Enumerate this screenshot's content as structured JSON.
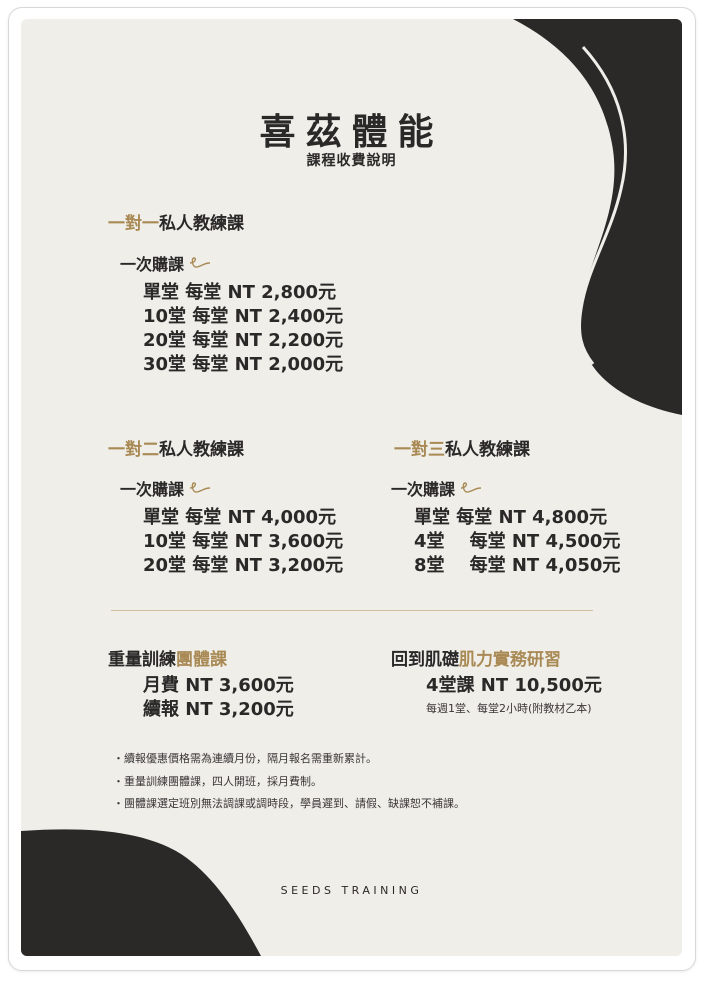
{
  "header": {
    "title": "喜茲體能",
    "subtitle": "課程收費說明"
  },
  "one_on_one": {
    "title_accent": "一對一",
    "title_rest": "私人教練課",
    "buy_label": "一次購課",
    "prices": [
      "單堂  每堂 NT 2,800元",
      "10堂  每堂 NT 2,400元",
      "20堂  每堂 NT 2,200元",
      "30堂  每堂 NT 2,000元"
    ]
  },
  "one_on_two": {
    "title_accent": "一對二",
    "title_rest": "私人教練課",
    "buy_label": "一次購課",
    "prices": [
      "單堂  每堂 NT 4,000元",
      "10堂  每堂 NT 3,600元",
      "20堂  每堂 NT 3,200元"
    ]
  },
  "one_on_three": {
    "title_accent": "一對三",
    "title_rest": "私人教練課",
    "buy_label": "一次購課",
    "prices": [
      "單堂  每堂 NT 4,800元",
      "4堂    每堂 NT 4,500元",
      "8堂    每堂 NT 4,050元"
    ]
  },
  "group_class": {
    "title_plain": "重量訓練",
    "title_accent": "團體課",
    "prices": [
      "月費 NT 3,600元",
      "續報 NT 3,200元"
    ]
  },
  "workshop": {
    "title_plain": "回到肌礎",
    "title_accent": "肌力實務研習",
    "price": "4堂課 NT 10,500元",
    "note": "每週1堂、每堂2小時(附教材乙本)"
  },
  "notes": [
    "・續報優惠價格需為連續月份，隔月報名需重新累計。",
    "・重量訓練團體課，四人開班，採月費制。",
    "・團體課選定班別無法調課或調時段，學員遲到、請假、缺課恕不補課。"
  ],
  "footer": {
    "brand": "SEEDS TRAINING"
  },
  "colors": {
    "background": "#efeee9",
    "dark": "#2b2828",
    "accent": "#a98a55"
  },
  "icons": {
    "buy_decoration": "swirl-icon"
  }
}
